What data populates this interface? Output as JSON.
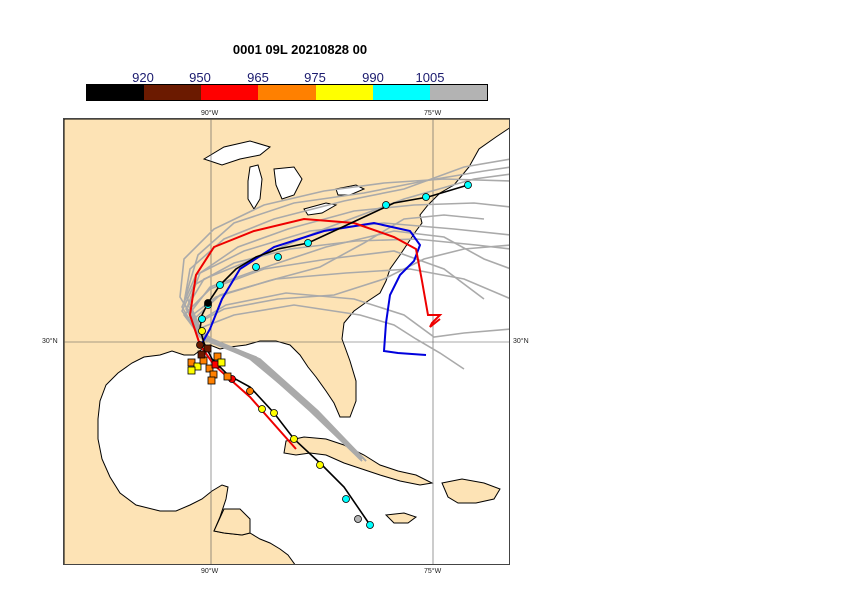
{
  "title": "0001 09L 20210828 00",
  "colorbar": {
    "labels": [
      "920",
      "950",
      "965",
      "975",
      "990",
      "1005"
    ],
    "colors": [
      "#000000",
      "#6b1a00",
      "#ff0000",
      "#ff8000",
      "#ffff00",
      "#00ffff",
      "#b3b3b3"
    ]
  },
  "axes": {
    "lon_top": [
      "90°W",
      "75°W"
    ],
    "lon_bottom": [
      "90°W",
      "75°W"
    ],
    "lat_left": "30°N",
    "lat_right": "30°N"
  },
  "map_colors": {
    "land": "#fde3b5",
    "water": "#ffffff",
    "ensemble": "#aaaaaa",
    "ensemble_mean": "#000000",
    "blue_track": "#0000dd",
    "red_track": "#ee0000"
  }
}
